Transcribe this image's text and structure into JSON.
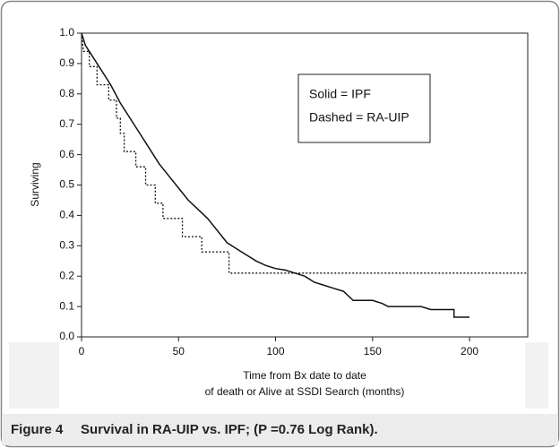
{
  "chart_data": {
    "type": "line",
    "ylabel": "Surviving",
    "xlabel": [
      "Time from Bx date to date",
      "of death or Alive at SSDI Search (months)"
    ],
    "annotations": [
      "Solid = IPF",
      "Dashed = RA-UIP"
    ],
    "caption_label": "Figure 4",
    "caption": "Survival in RA-UIP vs. IPF; (P =0.76 Log Rank).",
    "xlim": [
      0,
      230
    ],
    "xticks": [
      0,
      50,
      100,
      150,
      200
    ],
    "ylim": [
      0,
      1
    ],
    "yticks": [
      {
        "value": 0,
        "label": "0.0"
      },
      0.1,
      0.2,
      0.3,
      0.4,
      0.5,
      0.6,
      0.7,
      0.8,
      0.9,
      {
        "value": 1,
        "label": "1.0"
      }
    ],
    "grid": false,
    "series": [
      {
        "color": "#111111",
        "dashed": false,
        "x": [
          0,
          2,
          5,
          10,
          15,
          20,
          25,
          30,
          35,
          40,
          45,
          50,
          55,
          60,
          65,
          70,
          75,
          80,
          85,
          90,
          95,
          100,
          105,
          110,
          115,
          120,
          125,
          130,
          135,
          140,
          150,
          155,
          158,
          175,
          180,
          192,
          192,
          200
        ],
        "values": [
          1.0,
          0.96,
          0.93,
          0.88,
          0.83,
          0.77,
          0.72,
          0.67,
          0.62,
          0.57,
          0.53,
          0.49,
          0.45,
          0.42,
          0.39,
          0.35,
          0.31,
          0.29,
          0.27,
          0.25,
          0.235,
          0.225,
          0.22,
          0.21,
          0.2,
          0.18,
          0.17,
          0.16,
          0.15,
          0.12,
          0.12,
          0.11,
          0.1,
          0.1,
          0.09,
          0.09,
          0.065,
          0.065
        ]
      },
      {
        "color": "#111111",
        "dashed": true,
        "x": [
          0,
          1,
          4,
          4,
          8,
          8,
          14,
          14,
          18,
          18,
          20,
          20,
          22,
          22,
          28,
          28,
          33,
          33,
          38,
          38,
          42,
          42,
          52,
          52,
          62,
          62,
          76,
          76,
          230
        ],
        "values": [
          1.0,
          0.94,
          0.94,
          0.89,
          0.89,
          0.83,
          0.83,
          0.78,
          0.78,
          0.72,
          0.72,
          0.67,
          0.67,
          0.61,
          0.61,
          0.56,
          0.56,
          0.5,
          0.5,
          0.44,
          0.44,
          0.39,
          0.39,
          0.33,
          0.33,
          0.28,
          0.28,
          0.21,
          0.21
        ]
      }
    ]
  }
}
